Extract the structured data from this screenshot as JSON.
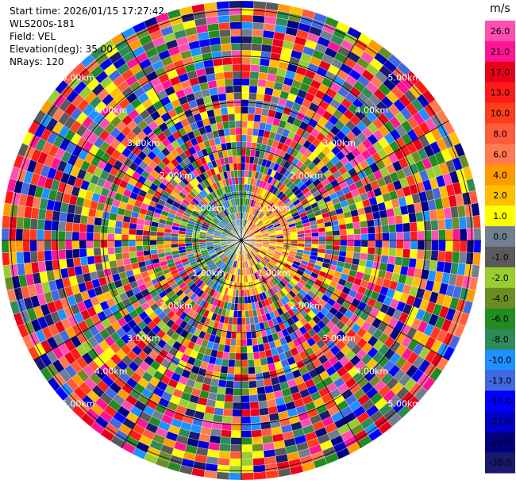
{
  "header": {
    "start_time": "Start time: 2026/01/15 17:27:42",
    "device": "WLS200s-181",
    "field": "Field: VEL",
    "elevation": "Elevation(deg): 35.00",
    "nrays": "NRays: 120"
  },
  "chart_data": {
    "type": "polar-ppi",
    "field": "VEL",
    "unit": "m/s",
    "nrays": 120,
    "elevation_deg": 35.0,
    "range_labels": [
      "1.00km",
      "2.00km",
      "3.00km",
      "4.00km",
      "5.00km"
    ],
    "range_km": [
      1,
      2,
      3,
      4,
      5
    ],
    "max_range_km": 5.2,
    "colorbar": {
      "ticks": [
        "26.0",
        "21.0",
        "17.0",
        "13.0",
        "10.0",
        "8.0",
        "6.0",
        "4.0",
        "2.0",
        "1.0",
        "0.0",
        "-1.0",
        "-2.0",
        "-4.0",
        "-6.0",
        "-8.0",
        "-10.0",
        "-13.0",
        "-17.0",
        "-21.0",
        "-26.0",
        "-30.0"
      ],
      "colors": [
        "#ff4fb0",
        "#ff1493",
        "#e8001a",
        "#ff1a1a",
        "#ff3d1a",
        "#ff5a3c",
        "#ff7a50",
        "#ff9a00",
        "#ffbf00",
        "#ffff00",
        "#708090",
        "#5a5a5a",
        "#9acd32",
        "#6b8e23",
        "#228b22",
        "#2e8b57",
        "#1e90ff",
        "#4169e1",
        "#0000ff",
        "#0000cd",
        "#000080",
        "#191970"
      ]
    }
  }
}
